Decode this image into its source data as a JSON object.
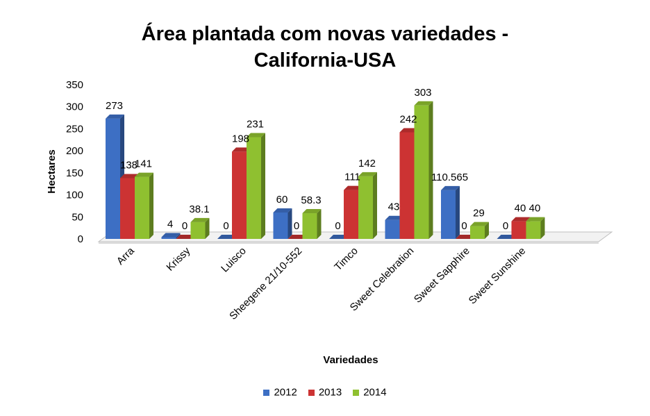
{
  "chart_data": {
    "type": "bar",
    "title_lines": [
      "Área plantada com novas variedades -",
      "California-USA"
    ],
    "xlabel": "Variedades",
    "ylabel": "Hectares",
    "ylim": [
      0,
      350
    ],
    "yticks": [
      0,
      50,
      100,
      150,
      200,
      250,
      300,
      350
    ],
    "categories": [
      "Arra",
      "Krissy",
      "Luisco",
      "Sheegene 21/10-552",
      "Timco",
      "Sweet Celebration",
      "Sweet Sapphire",
      "Sweet Sunshine"
    ],
    "series": [
      {
        "name": "2012",
        "color": "#3d6fc4",
        "values": [
          273,
          4,
          0,
          60,
          0,
          43,
          110.565,
          0
        ],
        "labels": [
          "273",
          "4",
          "0",
          "60",
          "0",
          "43",
          "110.565",
          "0"
        ]
      },
      {
        "name": "2013",
        "color": "#cc3333",
        "values": [
          138,
          0,
          198,
          0,
          111,
          242,
          0,
          40
        ],
        "labels": [
          "138",
          "0",
          "198",
          "0",
          "111",
          "242",
          "0",
          "40"
        ]
      },
      {
        "name": "2014",
        "color": "#8fc030",
        "values": [
          141,
          38.1,
          231,
          58.3,
          142,
          303,
          29,
          40
        ],
        "labels": [
          "141",
          "38.1",
          "231",
          "58.3",
          "142",
          "303",
          "29",
          "40"
        ]
      }
    ],
    "grid": false,
    "legend_position": "bottom"
  }
}
